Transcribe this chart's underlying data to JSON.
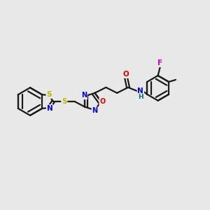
{
  "background_color": "#e8e8e8",
  "bond_color": "#1a1a1a",
  "atom_colors": {
    "S": "#b8b800",
    "N": "#0000ee",
    "O": "#dd0000",
    "F": "#cc00cc",
    "H": "#007070",
    "C": "#1a1a1a"
  },
  "figsize": [
    3.0,
    3.0
  ],
  "dpi": 100,
  "lw": 1.6
}
